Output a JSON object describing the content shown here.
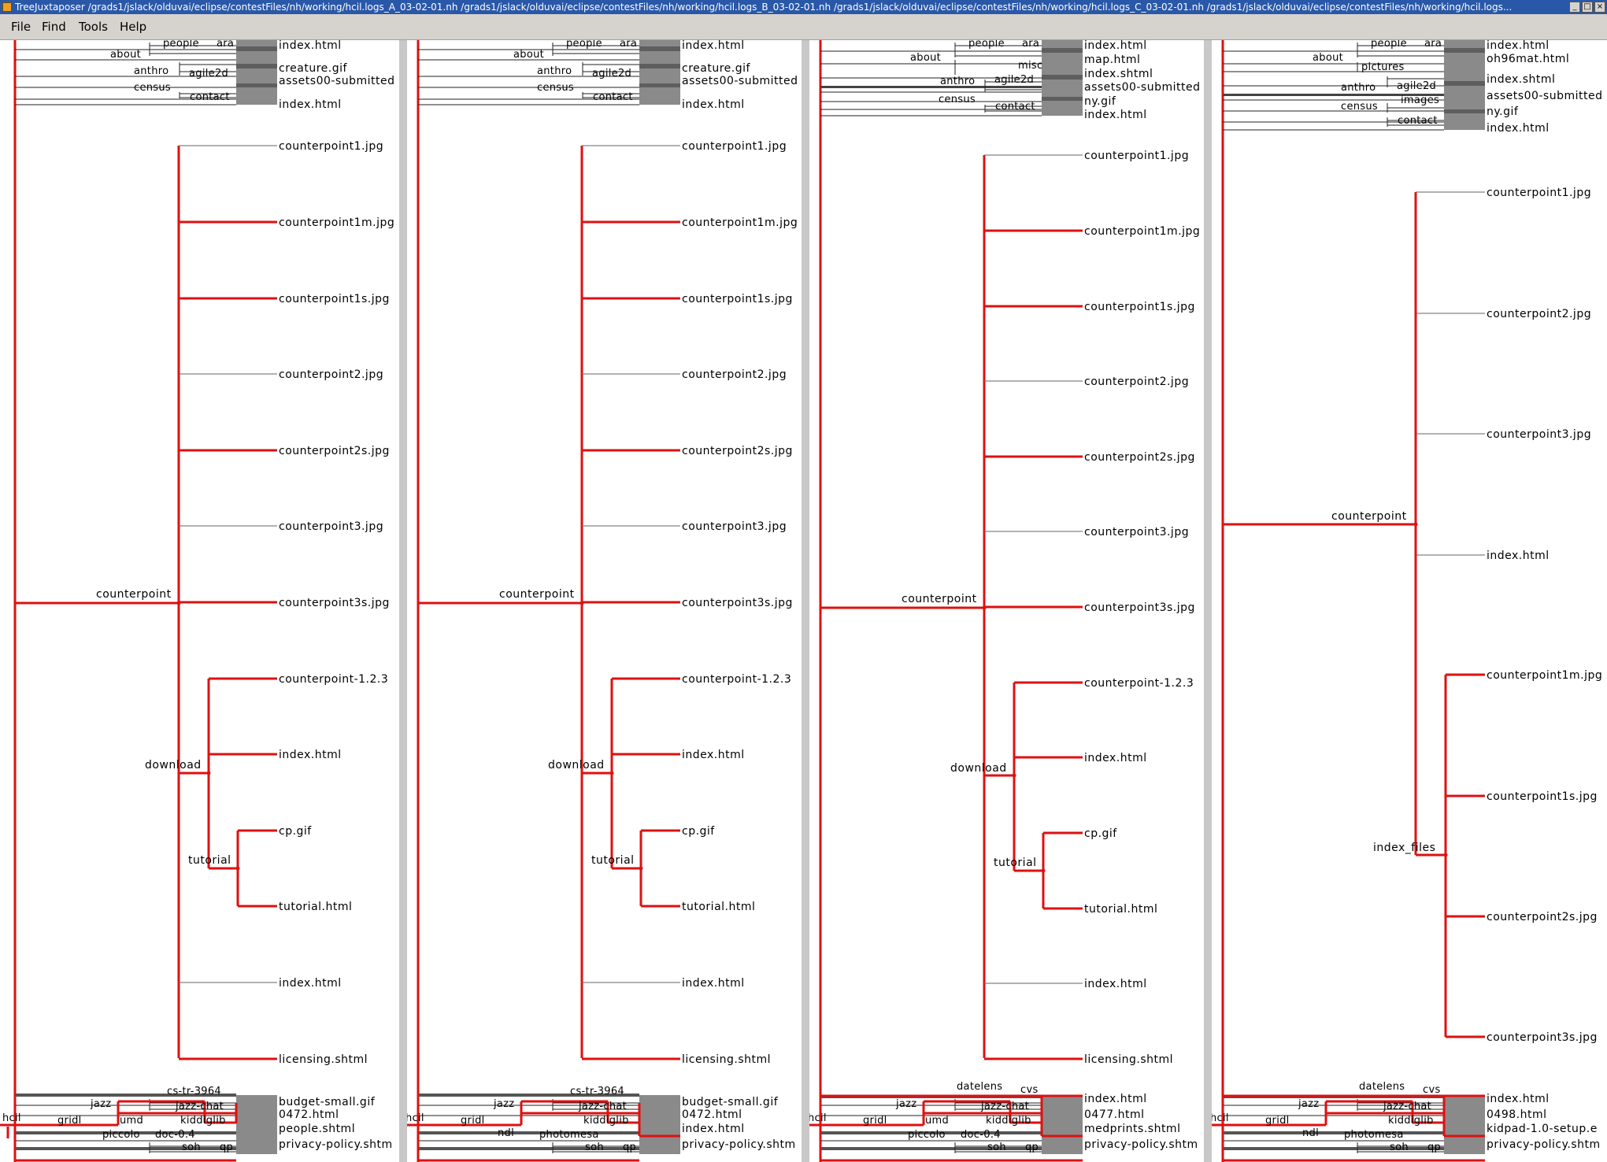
{
  "window": {
    "title": "TreeJuxtaposer /grads1/jslack/olduvai/eclipse/contestFiles/nh/working/hcil.logs_A_03-02-01.nh /grads1/jslack/olduvai/eclipse/contestFiles/nh/working/hcil.logs_B_03-02-01.nh /grads1/jslack/olduvai/eclipse/contestFiles/nh/working/hcil.logs_C_03-02-01.nh /grads1/jslack/olduvai/eclipse/contestFiles/nh/working/hcil.logs...",
    "buttons": [
      "_",
      "□",
      "×"
    ]
  },
  "menu": [
    "File",
    "Find",
    "Tools",
    "Help"
  ],
  "colors": {
    "highlight": "#dd1111",
    "panel_separator": "#c8c8c8",
    "title_bar": "#2a58a8",
    "menu_bg": "#d6d3ce"
  },
  "panels": [
    {
      "top_inner": [
        "about",
        "anthro",
        "census",
        "people",
        "ara",
        "agile2d",
        "contact"
      ],
      "top_leaves": [
        "index.html",
        "creature.gif",
        "assets00-submitted",
        "index.html"
      ],
      "branch": "counterpoint",
      "sub_download": "download",
      "sub_tutorial": "tutorial",
      "leaves": [
        "counterpoint1.jpg",
        "counterpoint1m.jpg",
        "counterpoint1s.jpg",
        "counterpoint2.jpg",
        "counterpoint2s.jpg",
        "counterpoint3.jpg",
        "counterpoint3s.jpg",
        "counterpoint-1.2.3",
        "index.html",
        "cp.gif",
        "tutorial.html",
        "index.html",
        "licensing.shtml"
      ],
      "bottom_inner": [
        "cs-tr-3964",
        "jazz",
        "jazz-chat",
        "gridl",
        "umd",
        "kiddiglib",
        "piccolo",
        "doc-0.4",
        "soh",
        "qp",
        "hcil"
      ],
      "bottom_leaves": [
        "budget-small.gif",
        "0472.html",
        "people.shtml",
        "privacy-policy.shtm"
      ]
    },
    {
      "top_inner": [
        "about",
        "anthro",
        "census",
        "people",
        "ara",
        "agile2d",
        "contact"
      ],
      "top_leaves": [
        "index.html",
        "creature.gif",
        "assets00-submitted",
        "index.html"
      ],
      "branch": "counterpoint",
      "sub_download": "download",
      "sub_tutorial": "tutorial",
      "leaves": [
        "counterpoint1.jpg",
        "counterpoint1m.jpg",
        "counterpoint1s.jpg",
        "counterpoint2.jpg",
        "counterpoint2s.jpg",
        "counterpoint3.jpg",
        "counterpoint3s.jpg",
        "counterpoint-1.2.3",
        "index.html",
        "cp.gif",
        "tutorial.html",
        "index.html",
        "licensing.shtml"
      ],
      "bottom_inner": [
        "cs-tr-3964",
        "jazz",
        "jazz-chat",
        "gridl",
        "ndl",
        "kiddiglib",
        "photomesa",
        "soh",
        "qp",
        "hcil"
      ],
      "bottom_leaves": [
        "budget-small.gif",
        "0472.html",
        "index.html",
        "privacy-policy.shtm"
      ]
    },
    {
      "top_inner": [
        "about",
        "anthro",
        "census",
        "people",
        "ara",
        "misc",
        "agile2d",
        "contact"
      ],
      "top_leaves": [
        "index.html",
        "map.html",
        "index.shtml",
        "assets00-submitted",
        "ny.gif",
        "index.html"
      ],
      "branch": "counterpoint",
      "sub_download": "download",
      "sub_tutorial": "tutorial",
      "leaves": [
        "counterpoint1.jpg",
        "counterpoint1m.jpg",
        "counterpoint1s.jpg",
        "counterpoint2.jpg",
        "counterpoint2s.jpg",
        "counterpoint3.jpg",
        "counterpoint3s.jpg",
        "counterpoint-1.2.3",
        "index.html",
        "cp.gif",
        "tutorial.html",
        "index.html",
        "licensing.shtml"
      ],
      "bottom_inner": [
        "datelens",
        "cvs",
        "jazz",
        "jazz-chat",
        "gridl",
        "umd",
        "kiddiglib",
        "piccolo",
        "doc-0.4",
        "soh",
        "qp",
        "hcil"
      ],
      "bottom_leaves": [
        "index.html",
        "0477.html",
        "medprints.shtml",
        "privacy-policy.shtm"
      ]
    },
    {
      "top_inner": [
        "about",
        "pictures",
        "anthro",
        "census",
        "people",
        "ara",
        "agile2d",
        "images",
        "contact"
      ],
      "top_leaves": [
        "index.html",
        "oh96mat.html",
        "index.shtml",
        "assets00-submitted",
        "ny.gif",
        "index.html"
      ],
      "branch": "counterpoint",
      "sub_index_files": "index_files",
      "leaves": [
        "counterpoint1.jpg",
        "counterpoint2.jpg",
        "counterpoint3.jpg",
        "index.html",
        "counterpoint1m.jpg",
        "counterpoint1s.jpg",
        "counterpoint2s.jpg",
        "counterpoint3s.jpg"
      ],
      "bottom_inner": [
        "datelens",
        "cvs",
        "jazz",
        "jazz-chat",
        "gridl",
        "ndl",
        "kiddiglib",
        "photomesa",
        "soh",
        "qp",
        "hcil"
      ],
      "bottom_leaves": [
        "index.html",
        "0498.html",
        "kidpad-1.0-setup.e",
        "privacy-policy.shtm"
      ]
    }
  ]
}
